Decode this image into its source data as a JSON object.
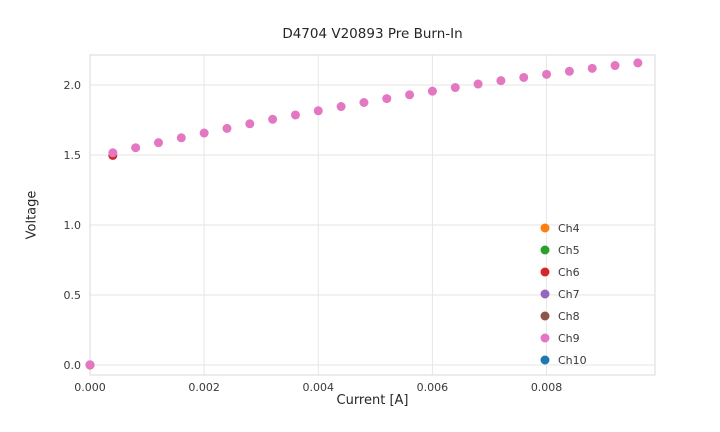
{
  "chart_data": {
    "type": "scatter",
    "title": "D4704 V20893 Pre Burn-In",
    "xlabel": "Current [A]",
    "ylabel": "Voltage",
    "xlim": [
      0,
      0.0099
    ],
    "ylim": [
      -0.0714,
      2.2143
    ],
    "grid": true,
    "grid_color": "#e6e6e6",
    "border_color": "#d9d9d9",
    "tick_color": "#3a3a3a",
    "xticks": {
      "values": [
        0,
        0.002,
        0.004,
        0.006,
        0.008
      ],
      "labels": [
        "0.000",
        "0.002",
        "0.004",
        "0.006",
        "0.008"
      ]
    },
    "yticks": {
      "values": [
        0,
        0.5,
        1.0,
        1.5,
        2.0
      ],
      "labels": [
        "0.0",
        "0.5",
        "1.0",
        "1.5",
        "2.0"
      ]
    },
    "legend": {
      "position": "lower-right",
      "entries": [
        {
          "label": "Ch4",
          "color": "#ff7f0e"
        },
        {
          "label": "Ch5",
          "color": "#2ca02c"
        },
        {
          "label": "Ch6",
          "color": "#d62728"
        },
        {
          "label": "Ch7",
          "color": "#9467bd"
        },
        {
          "label": "Ch8",
          "color": "#8c564b"
        },
        {
          "label": "Ch9",
          "color": "#e377c2"
        },
        {
          "label": "Ch10",
          "color": "#1f77b4"
        }
      ]
    },
    "series": [
      {
        "name": "Ch6",
        "color": "#d62728",
        "points": [
          [
            0.0,
            0.0
          ],
          [
            0.0004,
            1.497
          ]
        ]
      },
      {
        "name": "Ch9",
        "color": "#e377c2",
        "points": [
          [
            0.0,
            0.002
          ],
          [
            0.0004,
            1.516
          ],
          [
            0.0008,
            1.552
          ],
          [
            0.0012,
            1.588
          ],
          [
            0.0016,
            1.623
          ],
          [
            0.002,
            1.657
          ],
          [
            0.0024,
            1.69
          ],
          [
            0.0028,
            1.723
          ],
          [
            0.0032,
            1.755
          ],
          [
            0.0036,
            1.786
          ],
          [
            0.004,
            1.816
          ],
          [
            0.0044,
            1.846
          ],
          [
            0.0048,
            1.875
          ],
          [
            0.0052,
            1.903
          ],
          [
            0.0056,
            1.93
          ],
          [
            0.006,
            1.956
          ],
          [
            0.0064,
            1.982
          ],
          [
            0.0068,
            2.007
          ],
          [
            0.0072,
            2.031
          ],
          [
            0.0076,
            2.054
          ],
          [
            0.008,
            2.076
          ],
          [
            0.0084,
            2.098
          ],
          [
            0.0088,
            2.119
          ],
          [
            0.0092,
            2.139
          ],
          [
            0.0096,
            2.158
          ]
        ]
      }
    ]
  }
}
